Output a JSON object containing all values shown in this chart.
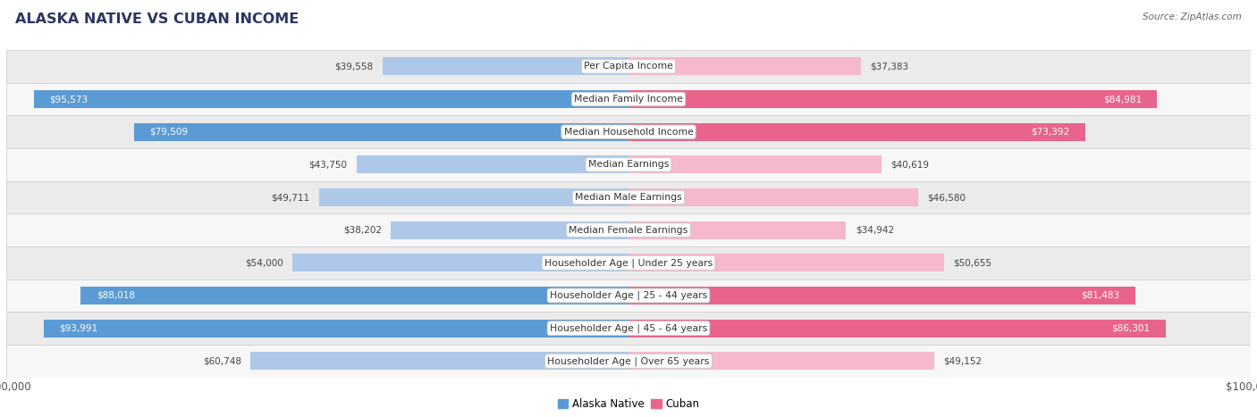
{
  "title": "ALASKA NATIVE VS CUBAN INCOME",
  "source": "Source: ZipAtlas.com",
  "categories": [
    "Per Capita Income",
    "Median Family Income",
    "Median Household Income",
    "Median Earnings",
    "Median Male Earnings",
    "Median Female Earnings",
    "Householder Age | Under 25 years",
    "Householder Age | 25 - 44 years",
    "Householder Age | 45 - 64 years",
    "Householder Age | Over 65 years"
  ],
  "alaska_values": [
    39558,
    95573,
    79509,
    43750,
    49711,
    38202,
    54000,
    88018,
    93991,
    60748
  ],
  "cuban_values": [
    37383,
    84981,
    73392,
    40619,
    46580,
    34942,
    50655,
    81483,
    86301,
    49152
  ],
  "alaska_labels": [
    "$39,558",
    "$95,573",
    "$79,509",
    "$43,750",
    "$49,711",
    "$38,202",
    "$54,000",
    "$88,018",
    "$93,991",
    "$60,748"
  ],
  "cuban_labels": [
    "$37,383",
    "$84,981",
    "$73,392",
    "$40,619",
    "$46,580",
    "$34,942",
    "$50,655",
    "$81,483",
    "$86,301",
    "$49,152"
  ],
  "max_value": 100000,
  "alaska_color_light": "#adc8e8",
  "alaska_color_dark": "#5b9bd5",
  "cuban_color_light": "#f5b8cc",
  "cuban_color_dark": "#e8648c",
  "background_color": "#ffffff",
  "row_bg_even": "#ebebeb",
  "row_bg_odd": "#f7f7f7",
  "legend_alaska_color": "#5b9bd5",
  "legend_cuban_color": "#e8648c",
  "label_inside_threshold": 65000,
  "title_color": "#2d3561",
  "source_color": "#666666",
  "label_outside_color": "#444444",
  "label_inside_color": "#ffffff",
  "category_text_color": "#333333",
  "tick_color": "#555555"
}
